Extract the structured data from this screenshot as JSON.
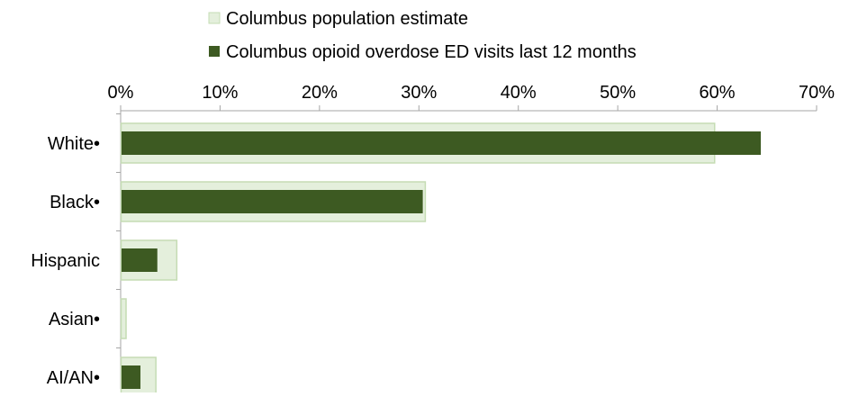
{
  "chart_data": {
    "type": "bar",
    "orientation": "horizontal",
    "categories": [
      "White•",
      "Black•",
      "Hispanic",
      "Asian•",
      "AI/AN•"
    ],
    "series": [
      {
        "name": "Columbus population estimate",
        "values": [
          59.7,
          30.6,
          5.6,
          0.5,
          3.5
        ],
        "color": "#e4efdc",
        "stroke": "#c5dcb4"
      },
      {
        "name": "Columbus opioid overdose ED visits last 12 months",
        "values": [
          64.3,
          30.3,
          3.6,
          0.0,
          1.9
        ],
        "color": "#3d5a22"
      }
    ],
    "x_axis": {
      "ticks": [
        "0%",
        "10%",
        "20%",
        "30%",
        "40%",
        "50%",
        "60%",
        "70%"
      ],
      "tick_values": [
        0,
        10,
        20,
        30,
        40,
        50,
        60,
        70
      ],
      "range": [
        0,
        70
      ],
      "position": "top",
      "unit": "%"
    },
    "grid": false,
    "legend_position": "top",
    "axis_color": "#a6a6a6"
  }
}
